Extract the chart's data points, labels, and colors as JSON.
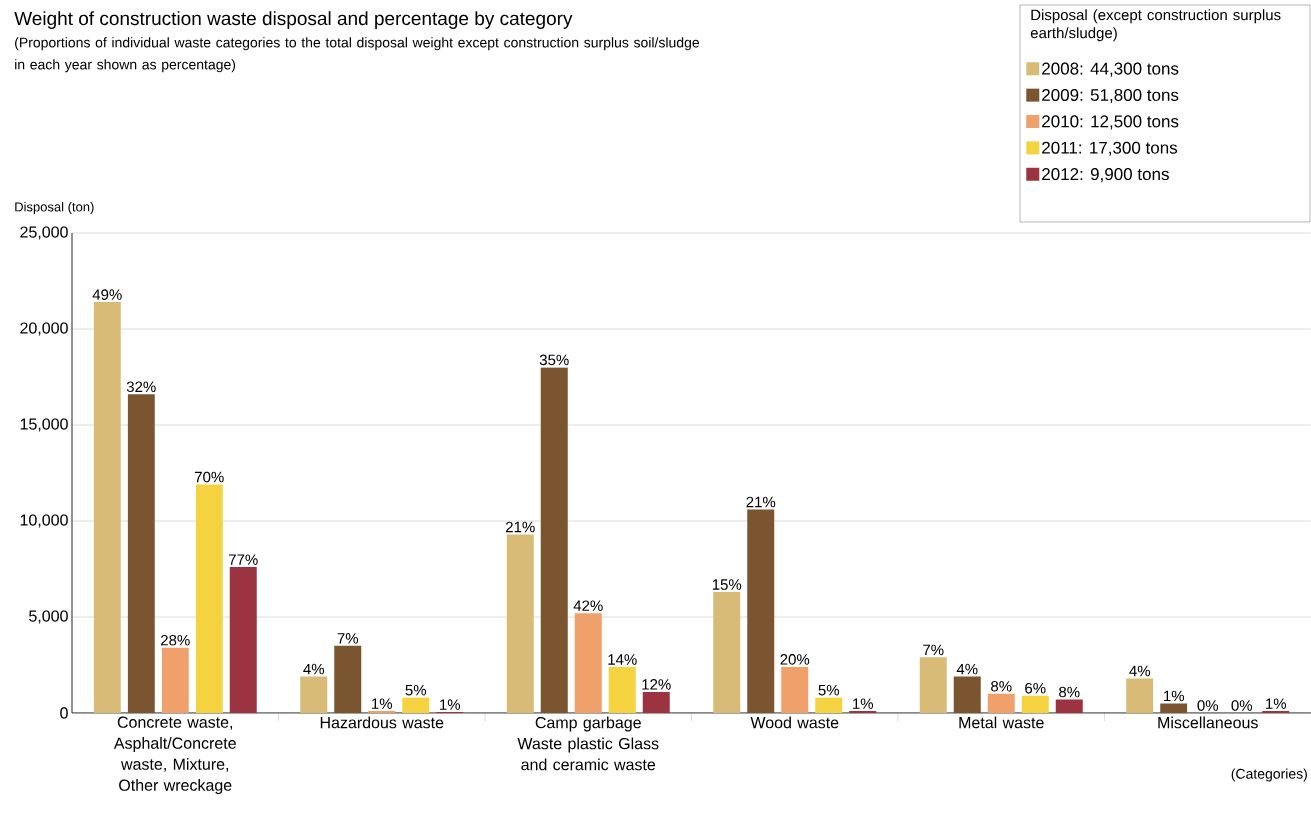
{
  "chart_data": {
    "type": "bar",
    "title": "Weight of construction waste disposal and percentage by category",
    "subtitle": "(Proportions of individual waste categories to the total disposal weight except construction surplus soil/sludge in each year shown as percentage)",
    "ylabel": "Disposal (ton)",
    "legend_title": "Disposal (except construction surplus earth/sludge)",
    "annotations": [
      "(Categories)",
      "49%",
      "4%",
      "21%",
      "15%",
      "7%",
      "4%",
      "32%",
      "7%",
      "35%",
      "21%",
      "4%",
      "1%",
      "28%",
      "1%",
      "42%",
      "20%",
      "8%",
      "0%",
      "70%",
      "5%",
      "14%",
      "5%",
      "6%",
      "0%",
      "77%",
      "1%",
      "12%",
      "1%",
      "8%",
      "1%"
    ],
    "categories": [
      "Concrete waste, Asphalt/Concrete waste, Mixture, Other wreckage",
      "Hazardous waste",
      "Camp garbage Waste plastic Glass and ceramic waste",
      "Wood waste",
      "Metal waste",
      "Miscellaneous"
    ],
    "series": [
      {
        "name": "2008: 44,300 tons",
        "color": "#d9bb78",
        "values": [
          21400,
          1900,
          9300,
          6300,
          2900,
          1800
        ]
      },
      {
        "name": "2009: 51,800 tons",
        "color": "#7a5530",
        "values": [
          16600,
          3500,
          18000,
          10600,
          1900,
          500
        ]
      },
      {
        "name": "2010: 12,500 tons",
        "color": "#f0a06a",
        "values": [
          3400,
          100,
          5200,
          2400,
          1000,
          0
        ]
      },
      {
        "name": "2011: 17,300 tons",
        "color": "#f5d340",
        "values": [
          11900,
          800,
          2400,
          800,
          900,
          0
        ]
      },
      {
        "name": "2012:   9,900 tons",
        "color": "#9b3440",
        "values": [
          7600,
          50,
          1100,
          100,
          700,
          100
        ]
      }
    ],
    "ylim": [
      0,
      25000
    ],
    "yticks": [
      0,
      {
        "value": 5000,
        "label": "5,000"
      },
      {
        "value": 10000,
        "label": "10,000"
      },
      {
        "value": 15000,
        "label": "15,000"
      },
      {
        "value": 20000,
        "label": "20,000"
      },
      {
        "value": 25000,
        "label": "25,000"
      }
    ],
    "grid": "y",
    "legend": "top right"
  }
}
